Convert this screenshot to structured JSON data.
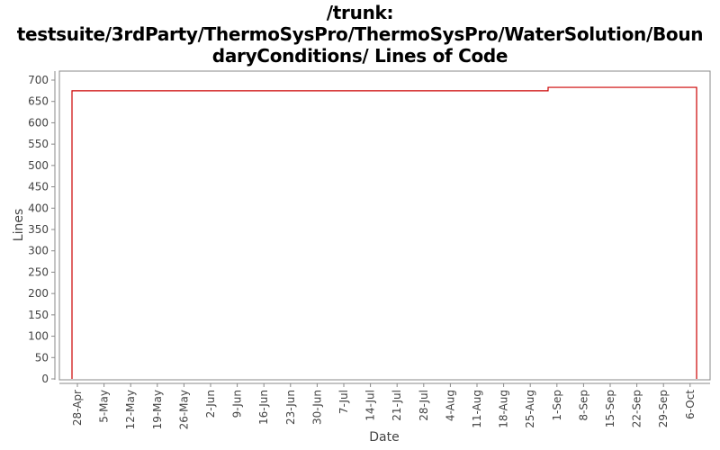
{
  "title": {
    "line1": "/trunk:",
    "line2": "testsuite/3rdParty/ThermoSysPro/ThermoSysPro/WaterSolution/Boun",
    "line3": "daryConditions/ Lines of Code"
  },
  "colors": {
    "series": "#cc0000",
    "axis": "#888888",
    "text": "#444444"
  },
  "chart_data": {
    "type": "line",
    "title": "/trunk: testsuite/3rdParty/ThermoSysPro/ThermoSysPro/WaterSolution/BoundaryConditions/ Lines of Code",
    "xlabel": "Date",
    "ylabel": "Lines",
    "ylim": [
      0,
      700
    ],
    "yticks": [
      0,
      50,
      100,
      150,
      200,
      250,
      300,
      350,
      400,
      450,
      500,
      550,
      600,
      650,
      700
    ],
    "xticks": [
      "28-Apr",
      "5-May",
      "12-May",
      "19-May",
      "26-May",
      "2-Jun",
      "9-Jun",
      "16-Jun",
      "23-Jun",
      "30-Jun",
      "7-Jul",
      "14-Jul",
      "21-Jul",
      "28-Jul",
      "4-Aug",
      "11-Aug",
      "18-Aug",
      "25-Aug",
      "1-Sep",
      "8-Sep",
      "15-Sep",
      "22-Sep",
      "29-Sep",
      "6-Oct"
    ],
    "grid": false,
    "legend": "none",
    "series": [
      {
        "name": "Lines of Code",
        "step": true,
        "points": [
          {
            "x": "~23-Apr",
            "y": 0
          },
          {
            "x": "~23-Apr",
            "y": 675
          },
          {
            "x": "~29-Aug",
            "y": 675
          },
          {
            "x": "~29-Aug",
            "y": 683
          },
          {
            "x": "~8-Oct",
            "y": 683
          },
          {
            "x": "~8-Oct",
            "y": 0
          }
        ]
      }
    ]
  }
}
